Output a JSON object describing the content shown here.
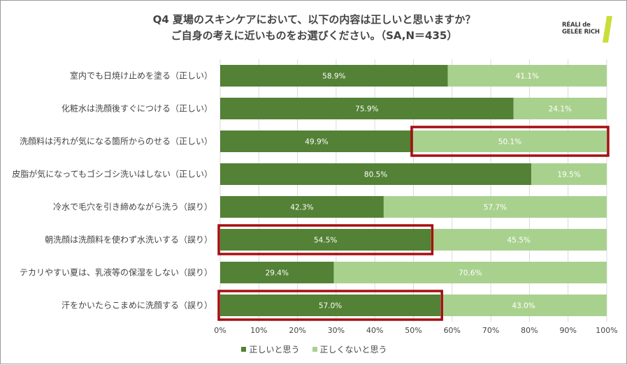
{
  "title": {
    "line1": "Q4 夏場のスキンケアにおいて、以下の内容は正しいと思いますか？",
    "line2": "ご自身の考えに近いものをお選びください。（SA,N＝435）"
  },
  "logo": {
    "line1": "RÉALI de",
    "line2": "GELÉE RICH"
  },
  "colors": {
    "series1": "#538135",
    "series2": "#a9d18e",
    "highlight": "#a50f12",
    "grid": "#d9d9d9",
    "text": "#444444",
    "logo_accent": "#c9de3a"
  },
  "chart_data": {
    "type": "bar",
    "orientation": "horizontal",
    "stacked": true,
    "categories": [
      "室内でも日焼け止めを塗る（正しい）",
      "化粧水は洗顔後すぐにつける（正しい）",
      "洗顔料は汚れが気になる箇所からのせる（正しい）",
      "皮脂が気になってもゴシゴシ洗いはしない（正しい）",
      "冷水で毛穴を引き締めながら洗う（誤り）",
      "朝洗顔は洗顔料を使わず水洗いする（誤り）",
      "テカリやすい夏は、乳液等の保湿をしない（誤り）",
      "汗をかいたらこまめに洗顔する（誤り）"
    ],
    "series": [
      {
        "name": "正しいと思う",
        "values": [
          58.9,
          75.9,
          49.9,
          80.5,
          42.3,
          54.5,
          29.4,
          57.0
        ]
      },
      {
        "name": "正しくないと思う",
        "values": [
          41.1,
          24.1,
          50.1,
          19.5,
          57.7,
          45.5,
          70.6,
          43.0
        ]
      }
    ],
    "value_labels": [
      [
        "58.9%",
        "75.9%",
        "49.9%",
        "80.5%",
        "42.3%",
        "54.5%",
        "29.4%",
        "57.0%"
      ],
      [
        "41.1%",
        "24.1%",
        "50.1%",
        "19.5%",
        "57.7%",
        "45.5%",
        "70.6%",
        "43.0%"
      ]
    ],
    "x_ticks": [
      "0%",
      "10%",
      "20%",
      "30%",
      "40%",
      "50%",
      "60%",
      "70%",
      "80%",
      "90%",
      "100%"
    ],
    "xlim": [
      0,
      100
    ],
    "grid": true,
    "legend": "bottom-center",
    "highlights": [
      {
        "category_index": 2,
        "series_index": 1
      },
      {
        "category_index": 5,
        "series_index": 0
      },
      {
        "category_index": 7,
        "series_index": 0
      }
    ]
  }
}
